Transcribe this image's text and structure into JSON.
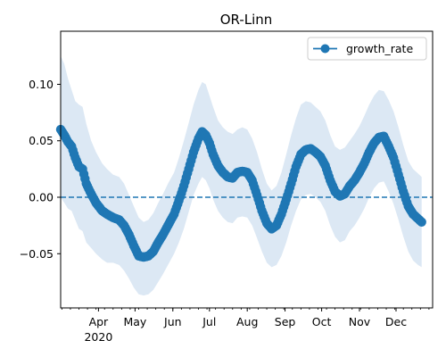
{
  "chart_data": {
    "type": "line",
    "title": "OR-Linn",
    "xlabel": "",
    "ylabel": "",
    "x_range": [
      "2020-03-01",
      "2020-12-31"
    ],
    "ylim": [
      -0.098,
      0.147
    ],
    "x_ticks": [
      {
        "date": "2020-04-01",
        "label": "Apr"
      },
      {
        "date": "2020-05-01",
        "label": "May"
      },
      {
        "date": "2020-06-01",
        "label": "Jun"
      },
      {
        "date": "2020-07-01",
        "label": "Jul"
      },
      {
        "date": "2020-08-01",
        "label": "Aug"
      },
      {
        "date": "2020-09-01",
        "label": "Sep"
      },
      {
        "date": "2020-10-01",
        "label": "Oct"
      },
      {
        "date": "2020-11-01",
        "label": "Nov"
      },
      {
        "date": "2020-12-01",
        "label": "Dec"
      }
    ],
    "x_year_label": "2020",
    "y_ticks": [
      -0.05,
      0.0,
      0.05,
      0.1
    ],
    "y_tick_labels": [
      "−0.05",
      "0.00",
      "0.05",
      "0.10"
    ],
    "legend": {
      "placement": "top-right",
      "entries": [
        "growth_rate"
      ]
    },
    "reference_line": {
      "y": 0.0,
      "style": "dashed"
    },
    "grid": false,
    "series": [
      {
        "name": "growth_rate",
        "color": "#1f77b4",
        "band_color": "#dce8f4",
        "points": [
          {
            "x": "2020-03-01",
            "y": 0.06,
            "lo": 0.0,
            "hi": 0.125
          },
          {
            "x": "2020-03-04",
            "y": 0.055,
            "lo": -0.005,
            "hi": 0.118
          },
          {
            "x": "2020-03-07",
            "y": 0.049,
            "lo": -0.01,
            "hi": 0.105
          },
          {
            "x": "2020-03-10",
            "y": 0.045,
            "lo": -0.012,
            "hi": 0.095
          },
          {
            "x": "2020-03-13",
            "y": 0.035,
            "lo": -0.02,
            "hi": 0.085
          },
          {
            "x": "2020-03-16",
            "y": 0.027,
            "lo": -0.028,
            "hi": 0.082
          },
          {
            "x": "2020-03-19",
            "y": 0.025,
            "lo": -0.03,
            "hi": 0.08
          },
          {
            "x": "2020-03-22",
            "y": 0.012,
            "lo": -0.04,
            "hi": 0.065
          },
          {
            "x": "2020-03-26",
            "y": 0.003,
            "lo": -0.045,
            "hi": 0.05
          },
          {
            "x": "2020-03-30",
            "y": -0.005,
            "lo": -0.05,
            "hi": 0.04
          },
          {
            "x": "2020-04-04",
            "y": -0.012,
            "lo": -0.055,
            "hi": 0.03
          },
          {
            "x": "2020-04-08",
            "y": -0.015,
            "lo": -0.058,
            "hi": 0.025
          },
          {
            "x": "2020-04-13",
            "y": -0.018,
            "lo": -0.058,
            "hi": 0.02
          },
          {
            "x": "2020-04-18",
            "y": -0.02,
            "lo": -0.06,
            "hi": 0.018
          },
          {
            "x": "2020-04-22",
            "y": -0.025,
            "lo": -0.065,
            "hi": 0.012
          },
          {
            "x": "2020-04-26",
            "y": -0.033,
            "lo": -0.072,
            "hi": 0.002
          },
          {
            "x": "2020-04-30",
            "y": -0.043,
            "lo": -0.08,
            "hi": -0.008
          },
          {
            "x": "2020-05-04",
            "y": -0.052,
            "lo": -0.086,
            "hi": -0.018
          },
          {
            "x": "2020-05-08",
            "y": -0.053,
            "lo": -0.087,
            "hi": -0.022
          },
          {
            "x": "2020-05-12",
            "y": -0.052,
            "lo": -0.086,
            "hi": -0.02
          },
          {
            "x": "2020-05-16",
            "y": -0.048,
            "lo": -0.082,
            "hi": -0.014
          },
          {
            "x": "2020-05-20",
            "y": -0.04,
            "lo": -0.075,
            "hi": -0.005
          },
          {
            "x": "2020-05-24",
            "y": -0.033,
            "lo": -0.068,
            "hi": 0.003
          },
          {
            "x": "2020-05-28",
            "y": -0.025,
            "lo": -0.06,
            "hi": 0.012
          },
          {
            "x": "2020-06-02",
            "y": -0.015,
            "lo": -0.05,
            "hi": 0.022
          },
          {
            "x": "2020-06-06",
            "y": -0.003,
            "lo": -0.04,
            "hi": 0.035
          },
          {
            "x": "2020-06-10",
            "y": 0.01,
            "lo": -0.028,
            "hi": 0.05
          },
          {
            "x": "2020-06-14",
            "y": 0.025,
            "lo": -0.013,
            "hi": 0.066
          },
          {
            "x": "2020-06-18",
            "y": 0.04,
            "lo": 0.002,
            "hi": 0.082
          },
          {
            "x": "2020-06-22",
            "y": 0.052,
            "lo": 0.012,
            "hi": 0.095
          },
          {
            "x": "2020-06-25",
            "y": 0.058,
            "lo": 0.018,
            "hi": 0.102
          },
          {
            "x": "2020-06-28",
            "y": 0.055,
            "lo": 0.015,
            "hi": 0.1
          },
          {
            "x": "2020-07-01",
            "y": 0.048,
            "lo": 0.008,
            "hi": 0.09
          },
          {
            "x": "2020-07-04",
            "y": 0.038,
            "lo": -0.002,
            "hi": 0.08
          },
          {
            "x": "2020-07-08",
            "y": 0.028,
            "lo": -0.012,
            "hi": 0.068
          },
          {
            "x": "2020-07-12",
            "y": 0.022,
            "lo": -0.018,
            "hi": 0.062
          },
          {
            "x": "2020-07-16",
            "y": 0.018,
            "lo": -0.022,
            "hi": 0.058
          },
          {
            "x": "2020-07-20",
            "y": 0.017,
            "lo": -0.023,
            "hi": 0.056
          },
          {
            "x": "2020-07-24",
            "y": 0.022,
            "lo": -0.018,
            "hi": 0.06
          },
          {
            "x": "2020-07-28",
            "y": 0.023,
            "lo": -0.017,
            "hi": 0.062
          },
          {
            "x": "2020-08-01",
            "y": 0.022,
            "lo": -0.018,
            "hi": 0.06
          },
          {
            "x": "2020-08-05",
            "y": 0.015,
            "lo": -0.025,
            "hi": 0.052
          },
          {
            "x": "2020-08-09",
            "y": 0.002,
            "lo": -0.036,
            "hi": 0.04
          },
          {
            "x": "2020-08-13",
            "y": -0.012,
            "lo": -0.048,
            "hi": 0.025
          },
          {
            "x": "2020-08-17",
            "y": -0.023,
            "lo": -0.058,
            "hi": 0.012
          },
          {
            "x": "2020-08-21",
            "y": -0.028,
            "lo": -0.062,
            "hi": 0.006
          },
          {
            "x": "2020-08-25",
            "y": -0.025,
            "lo": -0.06,
            "hi": 0.01
          },
          {
            "x": "2020-08-29",
            "y": -0.015,
            "lo": -0.052,
            "hi": 0.022
          },
          {
            "x": "2020-09-02",
            "y": -0.002,
            "lo": -0.04,
            "hi": 0.038
          },
          {
            "x": "2020-09-06",
            "y": 0.012,
            "lo": -0.025,
            "hi": 0.055
          },
          {
            "x": "2020-09-10",
            "y": 0.027,
            "lo": -0.012,
            "hi": 0.07
          },
          {
            "x": "2020-09-14",
            "y": 0.038,
            "lo": -0.002,
            "hi": 0.082
          },
          {
            "x": "2020-09-18",
            "y": 0.042,
            "lo": 0.002,
            "hi": 0.085
          },
          {
            "x": "2020-09-22",
            "y": 0.043,
            "lo": 0.003,
            "hi": 0.084
          },
          {
            "x": "2020-09-26",
            "y": 0.04,
            "lo": 0.0,
            "hi": 0.08
          },
          {
            "x": "2020-09-30",
            "y": 0.036,
            "lo": -0.004,
            "hi": 0.076
          },
          {
            "x": "2020-10-04",
            "y": 0.028,
            "lo": -0.012,
            "hi": 0.068
          },
          {
            "x": "2020-10-08",
            "y": 0.015,
            "lo": -0.025,
            "hi": 0.055
          },
          {
            "x": "2020-10-12",
            "y": 0.005,
            "lo": -0.035,
            "hi": 0.045
          },
          {
            "x": "2020-10-16",
            "y": 0.001,
            "lo": -0.04,
            "hi": 0.042
          },
          {
            "x": "2020-10-20",
            "y": 0.003,
            "lo": -0.038,
            "hi": 0.044
          },
          {
            "x": "2020-10-24",
            "y": 0.01,
            "lo": -0.03,
            "hi": 0.05
          },
          {
            "x": "2020-10-28",
            "y": 0.015,
            "lo": -0.025,
            "hi": 0.056
          },
          {
            "x": "2020-11-01",
            "y": 0.022,
            "lo": -0.018,
            "hi": 0.063
          },
          {
            "x": "2020-11-05",
            "y": 0.03,
            "lo": -0.01,
            "hi": 0.072
          },
          {
            "x": "2020-11-09",
            "y": 0.04,
            "lo": 0.0,
            "hi": 0.082
          },
          {
            "x": "2020-11-13",
            "y": 0.048,
            "lo": 0.008,
            "hi": 0.09
          },
          {
            "x": "2020-11-17",
            "y": 0.053,
            "lo": 0.013,
            "hi": 0.095
          },
          {
            "x": "2020-11-21",
            "y": 0.054,
            "lo": 0.014,
            "hi": 0.094
          },
          {
            "x": "2020-11-25",
            "y": 0.045,
            "lo": 0.005,
            "hi": 0.086
          },
          {
            "x": "2020-11-29",
            "y": 0.035,
            "lo": -0.006,
            "hi": 0.076
          },
          {
            "x": "2020-12-03",
            "y": 0.02,
            "lo": -0.02,
            "hi": 0.062
          },
          {
            "x": "2020-12-07",
            "y": 0.005,
            "lo": -0.035,
            "hi": 0.046
          },
          {
            "x": "2020-12-11",
            "y": -0.008,
            "lo": -0.048,
            "hi": 0.032
          },
          {
            "x": "2020-12-15",
            "y": -0.015,
            "lo": -0.056,
            "hi": 0.025
          },
          {
            "x": "2020-12-19",
            "y": -0.019,
            "lo": -0.06,
            "hi": 0.021
          },
          {
            "x": "2020-12-22",
            "y": -0.022,
            "lo": -0.062,
            "hi": 0.018
          }
        ]
      }
    ]
  }
}
